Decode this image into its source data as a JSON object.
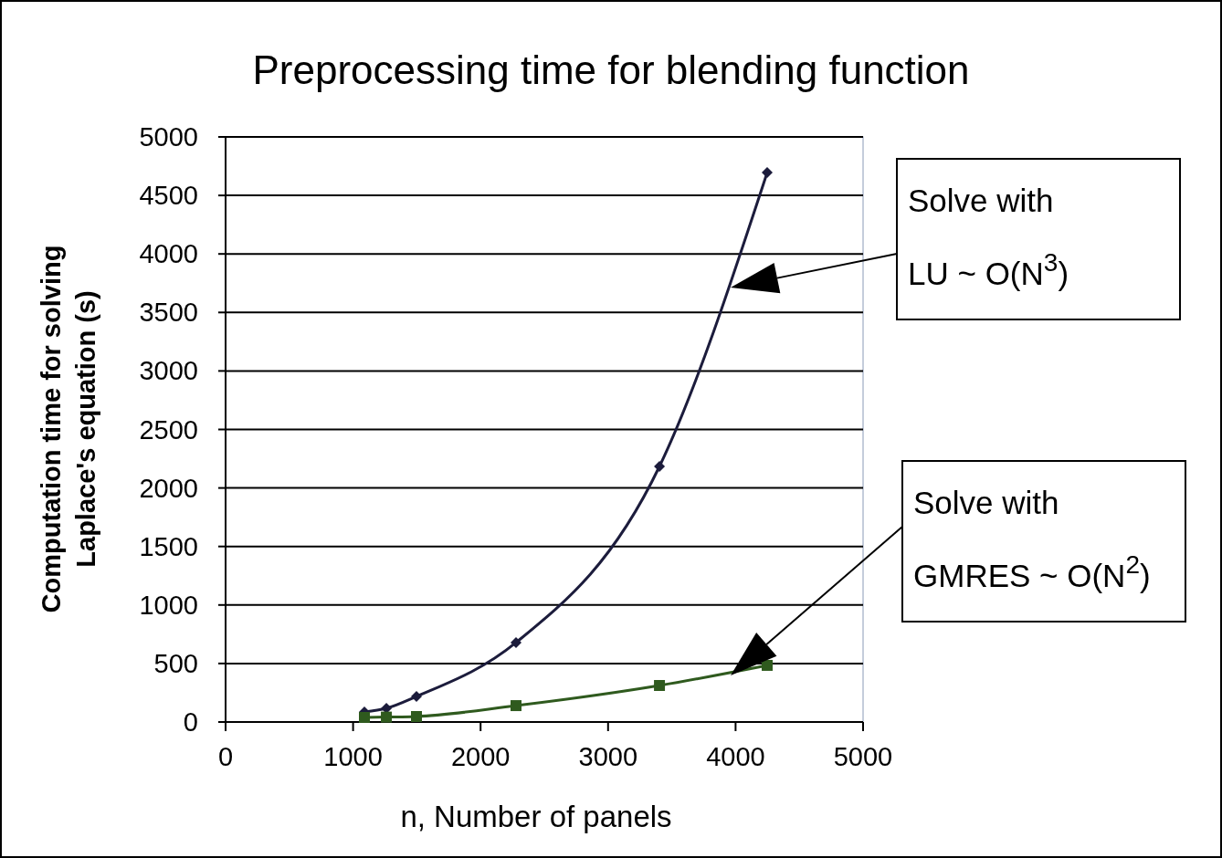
{
  "chart_data": {
    "type": "line",
    "title": "Preprocessing time for blending function",
    "xlabel": "n, Number of panels",
    "ylabel": "Computation time for solving Laplace's equation (s)",
    "x": [
      1089,
      1261,
      1497,
      2278,
      3403,
      4248
    ],
    "series": [
      {
        "color": "#1c1c3c",
        "marker": "diamond",
        "values": [
          86,
          117,
          218,
          679,
          2184,
          4696
        ]
      },
      {
        "color": "#2f5a1e",
        "marker": "square",
        "values": [
          39,
          42,
          47,
          140,
          312,
          484
        ]
      }
    ],
    "xlim": [
      0,
      5000
    ],
    "xticks": [
      0,
      1000,
      2000,
      3000,
      4000,
      5000
    ],
    "ylim": [
      0,
      5000
    ],
    "yticks": [
      0,
      500,
      1000,
      1500,
      2000,
      2500,
      3000,
      3500,
      4000,
      4500,
      5000
    ],
    "grid": "y",
    "annotations": [
      "Solve with LU ~ O(N$^{3}$)",
      "Solve with GMRES ~ O(N$^{2}$)"
    ]
  }
}
